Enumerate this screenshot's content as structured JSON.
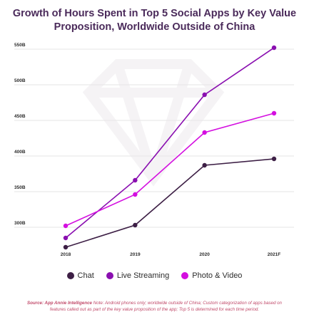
{
  "title": {
    "line1": "Growth of Hours Spent in Top 5 Social Apps by Key Value",
    "line2": "Proposition, Worldwide Outside of China"
  },
  "chart_data": {
    "type": "line",
    "categories": [
      "2018",
      "2019",
      "2020",
      "2021F"
    ],
    "y_ticks": [
      "300B",
      "350B",
      "400B",
      "450B",
      "500B",
      "550B"
    ],
    "y_tick_values": [
      300,
      350,
      400,
      450,
      500,
      550
    ],
    "ylim": [
      270,
      570
    ],
    "unit": "B",
    "grid": true,
    "legend_position": "bottom",
    "series": [
      {
        "name": "Chat",
        "color": "#3d1f45",
        "values": [
          268,
          299,
          383,
          392
        ]
      },
      {
        "name": "Live Streaming",
        "color": "#8a0fb0",
        "values": [
          281,
          362,
          482,
          548
        ]
      },
      {
        "name": "Photo & Video",
        "color": "#d40fe0",
        "values": [
          298,
          342,
          429,
          456
        ]
      }
    ]
  },
  "source": {
    "label": "Source: App Annie Intelligence",
    "note": " Note: Android phones only; worldwide outside of China; Custom categorization of apps based on features called out as part of the key value proposition of the app; Top 5 is determined for each time period."
  }
}
